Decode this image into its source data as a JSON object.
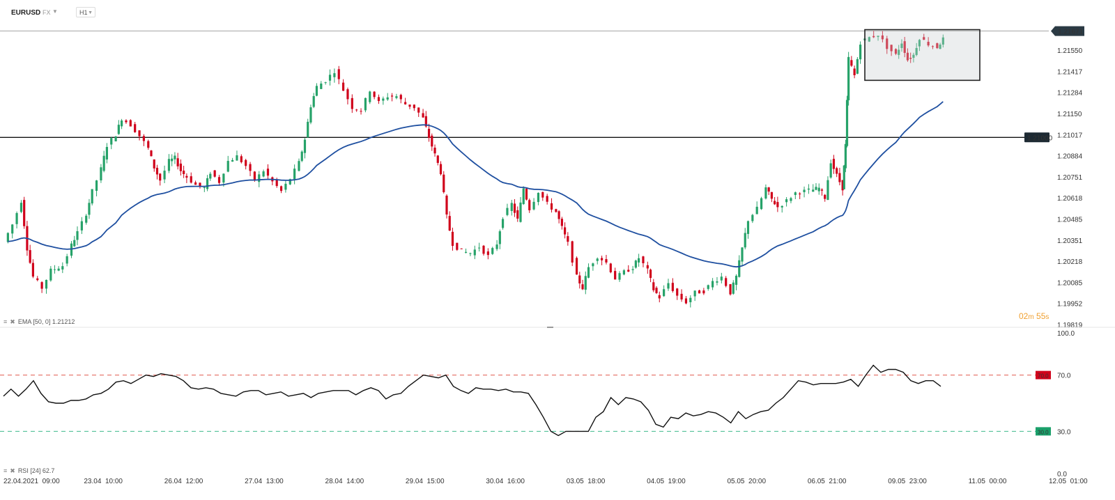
{
  "toolbar": {
    "symbol": "EURUSD",
    "instrument_type": "FX",
    "timeframe": "H1"
  },
  "countdown": {
    "minutes": "02",
    "m_label": "m",
    "seconds": "55",
    "s_label": "s"
  },
  "ema_legend": {
    "label": "EMA",
    "params": "[50, 0]",
    "value": "1.21212"
  },
  "rsi_legend": {
    "label": "RSI",
    "params": "[24]",
    "value": "62.7"
  },
  "colors": {
    "bull": "#26a269",
    "bear": "#d0021b",
    "ema": "#1e4fa0",
    "rsi": "#111111",
    "overbought": "#e05a4e",
    "oversold": "#3cb98c",
    "price_tag": "#2b3a44"
  },
  "chart_data": [
    {
      "type": "candlestick",
      "instrument": "EURUSD",
      "timeframe": "H1",
      "ylim": [
        1.19819,
        1.217
      ],
      "y_ticks": [
        "1.21550",
        "1.21417",
        "1.21284",
        "1.21150",
        "1.21017",
        "1.20884",
        "1.20751",
        "1.20618",
        "1.20485",
        "1.20351",
        "1.20218",
        "1.20085",
        "1.19952",
        "1.19819"
      ],
      "x_ticks": [
        "22.04.2021  09:00",
        "23.04  10:00",
        "26.04  12:00",
        "27.04  13:00",
        "28.04  14:00",
        "29.04  15:00",
        "30.04  16:00",
        "03.05  18:00",
        "04.05  19:00",
        "05.05  20:00",
        "06.05  21:00",
        "09.05  23:00",
        "11.05  00:00",
        "12.05  01:00"
      ],
      "current_price": "1.21671",
      "horizontal_level": "1.21000",
      "consolidation_box": {
        "price_top": 1.2168,
        "price_bottom": 1.2136
      },
      "price_path": [
        [
          0,
          1.2034
        ],
        [
          0.3,
          1.2045
        ],
        [
          0.6,
          1.206
        ],
        [
          0.8,
          1.203
        ],
        [
          1.0,
          1.2012
        ],
        [
          1.3,
          1.2005
        ],
        [
          1.6,
          1.2016
        ],
        [
          2.0,
          1.2019
        ],
        [
          2.3,
          1.2032
        ],
        [
          2.5,
          1.204
        ],
        [
          2.8,
          1.2052
        ],
        [
          3.0,
          1.2066
        ],
        [
          3.3,
          1.208
        ],
        [
          3.5,
          1.2095
        ],
        [
          3.8,
          1.2102
        ],
        [
          4.0,
          1.2112
        ],
        [
          4.3,
          1.2108
        ],
        [
          4.6,
          1.2101
        ],
        [
          4.9,
          1.2093
        ],
        [
          5.1,
          1.2081
        ],
        [
          5.3,
          1.2073
        ],
        [
          5.6,
          1.2085
        ],
        [
          5.8,
          1.2087
        ],
        [
          6.0,
          1.2079
        ],
        [
          6.2,
          1.2075
        ],
        [
          6.5,
          1.207
        ],
        [
          6.8,
          1.2068
        ],
        [
          7.0,
          1.2078
        ],
        [
          7.3,
          1.2072
        ],
        [
          7.6,
          1.2085
        ],
        [
          7.9,
          1.2088
        ],
        [
          8.2,
          1.2082
        ],
        [
          8.5,
          1.2073
        ],
        [
          8.8,
          1.2079
        ],
        [
          9.1,
          1.2072
        ],
        [
          9.4,
          1.2066
        ],
        [
          9.7,
          1.2074
        ],
        [
          10.0,
          1.2084
        ],
        [
          10.2,
          1.2099
        ],
        [
          10.4,
          1.212
        ],
        [
          10.6,
          1.2132
        ],
        [
          10.9,
          1.2136
        ],
        [
          11.2,
          1.2142
        ],
        [
          11.5,
          1.213
        ],
        [
          11.8,
          1.2119
        ],
        [
          12.1,
          1.2117
        ],
        [
          12.4,
          1.213
        ],
        [
          12.7,
          1.2122
        ],
        [
          13.0,
          1.2126
        ],
        [
          13.3,
          1.2126
        ],
        [
          13.6,
          1.2121
        ],
        [
          13.9,
          1.2119
        ],
        [
          14.2,
          1.2112
        ],
        [
          14.4,
          1.21
        ],
        [
          14.6,
          1.2089
        ],
        [
          14.8,
          1.2078
        ],
        [
          15.0,
          1.205
        ],
        [
          15.2,
          1.2033
        ],
        [
          15.5,
          1.2028
        ],
        [
          15.8,
          1.2027
        ],
        [
          16.1,
          1.2031
        ],
        [
          16.4,
          1.2025
        ],
        [
          16.7,
          1.2033
        ],
        [
          16.9,
          1.205
        ],
        [
          17.2,
          1.2058
        ],
        [
          17.4,
          1.2048
        ],
        [
          17.6,
          1.2068
        ],
        [
          17.8,
          1.2055
        ],
        [
          18.1,
          1.2066
        ],
        [
          18.4,
          1.2058
        ],
        [
          18.7,
          1.2053
        ],
        [
          18.9,
          1.2043
        ],
        [
          19.1,
          1.2033
        ],
        [
          19.4,
          1.2012
        ],
        [
          19.6,
          1.2005
        ],
        [
          19.8,
          1.2018
        ],
        [
          20.1,
          1.2025
        ],
        [
          20.4,
          1.2021
        ],
        [
          20.7,
          1.2011
        ],
        [
          21.0,
          1.2015
        ],
        [
          21.3,
          1.2018
        ],
        [
          21.5,
          1.2024
        ],
        [
          21.8,
          1.2016
        ],
        [
          22.0,
          1.2004
        ],
        [
          22.2,
          1.1999
        ],
        [
          22.5,
          1.2008
        ],
        [
          22.8,
          1.2
        ],
        [
          23.1,
          1.1996
        ],
        [
          23.4,
          1.2002
        ],
        [
          23.7,
          1.2003
        ],
        [
          24.0,
          1.2009
        ],
        [
          24.3,
          1.2012
        ],
        [
          24.6,
          1.2002
        ],
        [
          24.8,
          1.2012
        ],
        [
          25.0,
          1.203
        ],
        [
          25.2,
          1.2048
        ],
        [
          25.5,
          1.2055
        ],
        [
          25.8,
          1.2068
        ],
        [
          26.0,
          1.2061
        ],
        [
          26.2,
          1.2056
        ],
        [
          26.5,
          1.206
        ],
        [
          26.8,
          1.2065
        ],
        [
          27.1,
          1.2066
        ],
        [
          27.4,
          1.2067
        ],
        [
          27.6,
          1.2068
        ],
        [
          27.8,
          1.2062
        ],
        [
          28.0,
          1.2085
        ],
        [
          28.2,
          1.2076
        ],
        [
          28.4,
          1.2068
        ],
        [
          28.5,
          1.2095
        ],
        [
          28.6,
          1.215
        ],
        [
          28.8,
          1.2139
        ],
        [
          29.0,
          1.216
        ],
        [
          29.3,
          1.2163
        ],
        [
          29.6,
          1.2165
        ],
        [
          29.9,
          1.2157
        ],
        [
          30.2,
          1.2152
        ],
        [
          30.4,
          1.216
        ],
        [
          30.6,
          1.2149
        ],
        [
          30.8,
          1.2152
        ],
        [
          31.0,
          1.2163
        ],
        [
          31.3,
          1.2159
        ],
        [
          31.6,
          1.2157
        ],
        [
          31.8,
          1.2162
        ]
      ],
      "series": [
        {
          "name": "EMA [50, 0]",
          "last_value": 1.21212
        }
      ]
    },
    {
      "type": "line",
      "name": "RSI [24]",
      "ylim": [
        0,
        100
      ],
      "y_ticks": [
        "100.0",
        "70.0",
        "30.0",
        "0.0"
      ],
      "levels": {
        "overbought": "70.0",
        "oversold": "30.0"
      },
      "values": [
        55,
        60,
        55,
        60,
        66,
        57,
        51,
        50,
        50,
        52,
        52,
        53,
        56,
        57,
        60,
        65,
        66,
        64,
        67,
        70,
        69,
        71,
        70,
        69,
        66,
        61,
        60,
        61,
        60,
        57,
        56,
        55,
        58,
        59,
        59,
        56,
        57,
        58,
        55,
        56,
        57,
        54,
        57,
        58,
        59,
        59,
        59,
        56,
        59,
        61,
        59,
        53,
        56,
        57,
        62,
        66,
        70,
        69,
        68,
        70,
        62,
        59,
        57,
        61,
        60,
        60,
        59,
        60,
        58,
        58,
        57,
        49,
        40,
        30,
        27,
        30,
        30,
        30,
        30,
        40,
        44,
        54,
        49,
        54,
        53,
        51,
        45,
        35,
        33,
        40,
        39,
        43,
        41,
        42,
        44,
        43,
        40,
        36,
        44,
        39,
        42,
        44,
        45,
        50,
        54,
        60,
        66,
        65,
        63,
        64,
        64,
        64,
        65,
        67,
        62,
        70,
        77,
        72,
        74,
        74,
        72,
        66,
        64,
        66,
        66,
        62
      ],
      "last_value": 62.7
    }
  ]
}
